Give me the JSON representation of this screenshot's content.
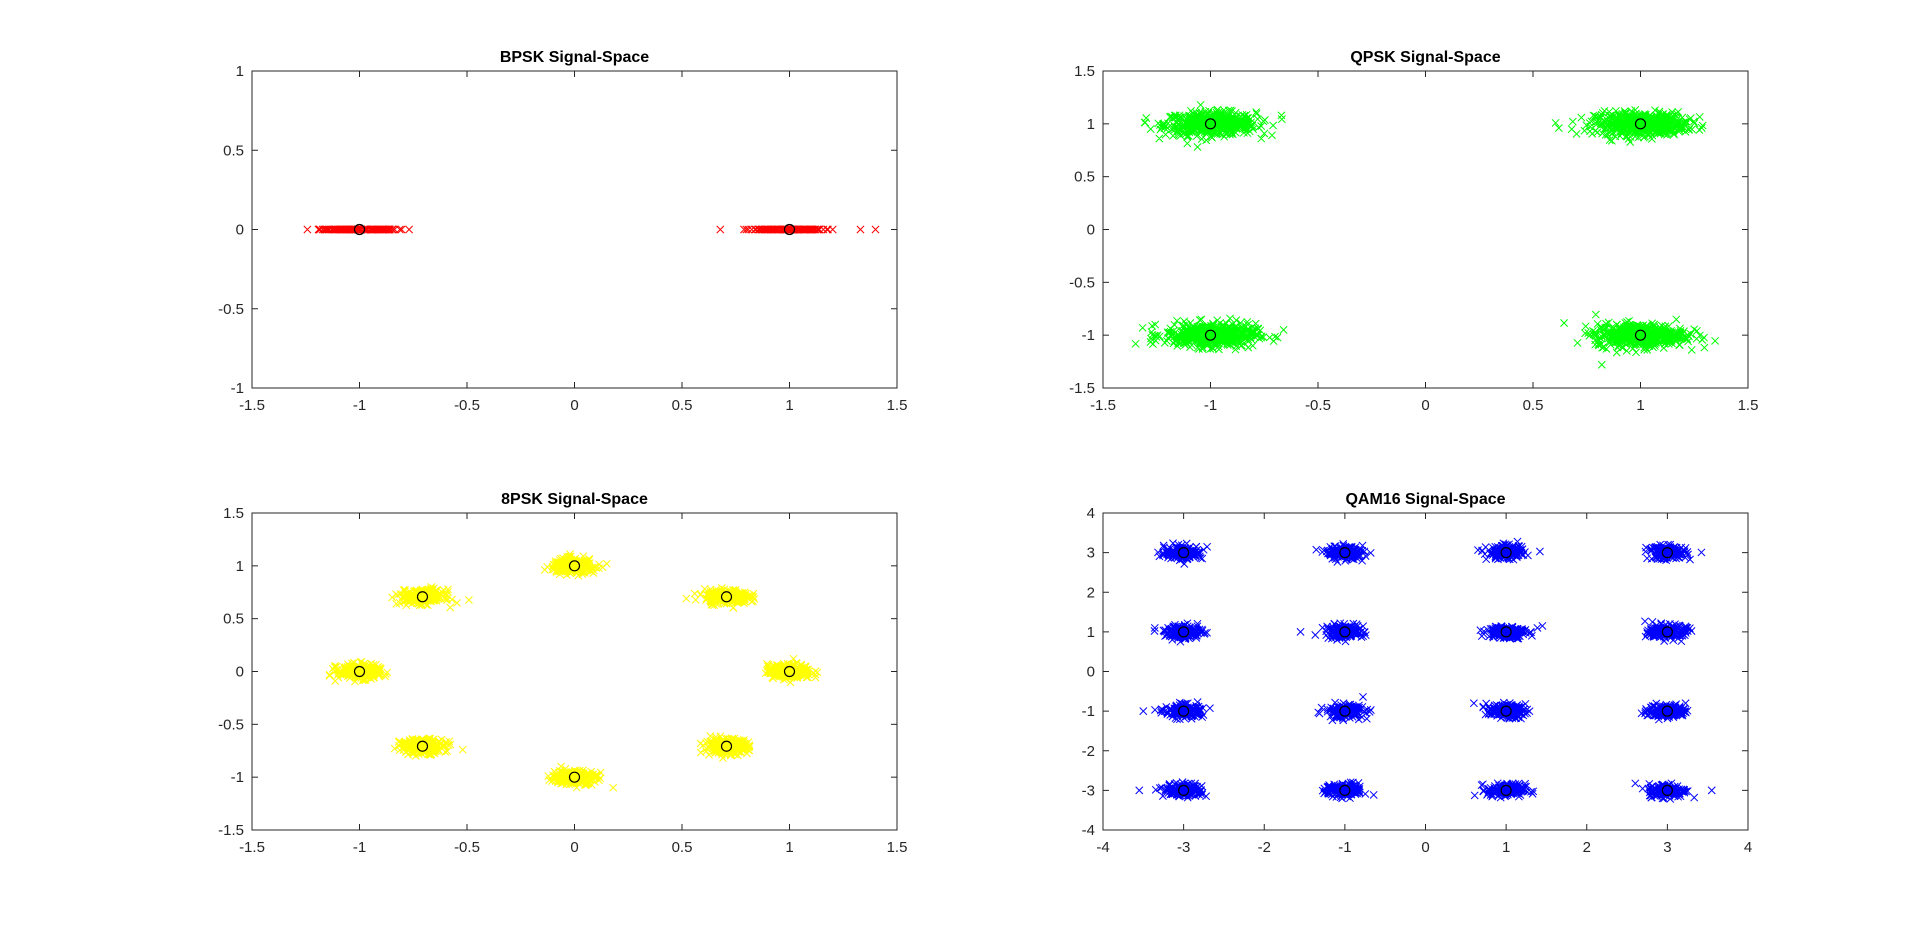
{
  "chart_data": [
    {
      "type": "scatter",
      "title": "BPSK Signal-Space",
      "xlabel": "",
      "ylabel": "",
      "xlim": [
        -1.5,
        1.5
      ],
      "ylim": [
        -1,
        1
      ],
      "xticks": [
        "-1.5",
        "-1",
        "-0.5",
        "0",
        "0.5",
        "1",
        "1.5"
      ],
      "yticks": [
        "-1",
        "-0.5",
        "0",
        "0.5",
        "1"
      ],
      "grid": false,
      "legend": "none",
      "series": [
        {
          "marker": "x",
          "color": "#ff0000",
          "clusters": [
            {
              "x": -1,
              "y": 0,
              "spread_x": 0.22,
              "spread_y": 0.0,
              "count": 180
            },
            {
              "x": 1,
              "y": 0,
              "spread_x": 0.22,
              "spread_y": 0.0,
              "count": 180
            }
          ],
          "extra_points": [
            {
              "x": 1.33,
              "y": 0
            },
            {
              "x": 1.4,
              "y": 0
            }
          ]
        },
        {
          "marker": "o",
          "color": "#000000",
          "x": [
            -1,
            1
          ],
          "y": [
            0,
            0
          ]
        }
      ]
    },
    {
      "type": "scatter",
      "title": "QPSK Signal-Space",
      "xlabel": "",
      "ylabel": "",
      "xlim": [
        -1.5,
        1.5
      ],
      "ylim": [
        -1.5,
        1.5
      ],
      "xticks": [
        "-1.5",
        "-1",
        "-0.5",
        "0",
        "0.5",
        "1",
        "1.5"
      ],
      "yticks": [
        "-1.5",
        "-1",
        "-0.5",
        "0",
        "0.5",
        "1",
        "1.5"
      ],
      "grid": false,
      "legend": "none",
      "series": [
        {
          "marker": "x",
          "color": "#00ff00",
          "clusters": [
            {
              "x": -1,
              "y": 1,
              "spread_x": 0.25,
              "spread_y": 0.13,
              "count": 520
            },
            {
              "x": 1,
              "y": 1,
              "spread_x": 0.25,
              "spread_y": 0.13,
              "count": 520
            },
            {
              "x": -1,
              "y": -1,
              "spread_x": 0.25,
              "spread_y": 0.13,
              "count": 520
            },
            {
              "x": 1,
              "y": -1,
              "spread_x": 0.25,
              "spread_y": 0.13,
              "count": 520
            }
          ],
          "extra_points": [
            {
              "x": 0.62,
              "y": 0.96
            },
            {
              "x": 0.68,
              "y": 0.95
            },
            {
              "x": -0.67,
              "y": 1.08
            },
            {
              "x": -0.66,
              "y": -0.95
            },
            {
              "x": 0.82,
              "y": -1.28
            }
          ]
        },
        {
          "marker": "o",
          "color": "#000000",
          "x": [
            -1,
            1,
            -1,
            1
          ],
          "y": [
            1,
            1,
            -1,
            -1
          ]
        }
      ]
    },
    {
      "type": "scatter",
      "title": "8PSK Signal-Space",
      "xlabel": "",
      "ylabel": "",
      "xlim": [
        -1.5,
        1.5
      ],
      "ylim": [
        -1.5,
        1.5
      ],
      "xticks": [
        "-1.5",
        "-1",
        "-0.5",
        "0",
        "0.5",
        "1",
        "1.5"
      ],
      "yticks": [
        "-1.5",
        "-1",
        "-0.5",
        "0",
        "0.5",
        "1",
        "1.5"
      ],
      "grid": false,
      "legend": "none",
      "series": [
        {
          "marker": "x",
          "color": "#ffff00",
          "clusters": [
            {
              "x": 1,
              "y": 0,
              "spread_x": 0.12,
              "spread_y": 0.08,
              "count": 260
            },
            {
              "x": 0.7071,
              "y": 0.7071,
              "spread_x": 0.12,
              "spread_y": 0.08,
              "count": 260
            },
            {
              "x": 0,
              "y": 1,
              "spread_x": 0.12,
              "spread_y": 0.08,
              "count": 260
            },
            {
              "x": -0.7071,
              "y": 0.7071,
              "spread_x": 0.12,
              "spread_y": 0.08,
              "count": 260
            },
            {
              "x": -1,
              "y": 0,
              "spread_x": 0.12,
              "spread_y": 0.08,
              "count": 260
            },
            {
              "x": -0.7071,
              "y": -0.7071,
              "spread_x": 0.12,
              "spread_y": 0.08,
              "count": 260
            },
            {
              "x": 0,
              "y": -1,
              "spread_x": 0.12,
              "spread_y": 0.08,
              "count": 260
            },
            {
              "x": 0.7071,
              "y": -0.7071,
              "spread_x": 0.12,
              "spread_y": 0.08,
              "count": 260
            }
          ],
          "extra_points": [
            {
              "x": 0.18,
              "y": -1.1
            },
            {
              "x": 0.52,
              "y": 0.69
            },
            {
              "x": -0.52,
              "y": -0.74
            }
          ]
        },
        {
          "marker": "o",
          "color": "#000000",
          "x": [
            1,
            0.7071,
            0,
            -0.7071,
            -1,
            -0.7071,
            0,
            0.7071
          ],
          "y": [
            0,
            0.7071,
            1,
            0.7071,
            0,
            -0.7071,
            -1,
            -0.7071
          ]
        }
      ]
    },
    {
      "type": "scatter",
      "title": "QAM16 Signal-Space",
      "xlabel": "",
      "ylabel": "",
      "xlim": [
        -4,
        4
      ],
      "ylim": [
        -4,
        4
      ],
      "xticks": [
        "-4",
        "-3",
        "-2",
        "-1",
        "0",
        "1",
        "2",
        "3",
        "4"
      ],
      "yticks": [
        "-4",
        "-3",
        "-2",
        "-1",
        "0",
        "1",
        "2",
        "3",
        "4"
      ],
      "grid": false,
      "legend": "none",
      "series": [
        {
          "marker": "x",
          "color": "#0000ff",
          "clusters": [
            {
              "x": -3,
              "y": 3,
              "spread_x": 0.28,
              "spread_y": 0.2,
              "count": 170
            },
            {
              "x": -1,
              "y": 3,
              "spread_x": 0.28,
              "spread_y": 0.2,
              "count": 170
            },
            {
              "x": 1,
              "y": 3,
              "spread_x": 0.28,
              "spread_y": 0.2,
              "count": 170
            },
            {
              "x": 3,
              "y": 3,
              "spread_x": 0.28,
              "spread_y": 0.2,
              "count": 170
            },
            {
              "x": -3,
              "y": 1,
              "spread_x": 0.28,
              "spread_y": 0.2,
              "count": 170
            },
            {
              "x": -1,
              "y": 1,
              "spread_x": 0.28,
              "spread_y": 0.2,
              "count": 170
            },
            {
              "x": 1,
              "y": 1,
              "spread_x": 0.28,
              "spread_y": 0.2,
              "count": 170
            },
            {
              "x": 3,
              "y": 1,
              "spread_x": 0.28,
              "spread_y": 0.2,
              "count": 170
            },
            {
              "x": -3,
              "y": -1,
              "spread_x": 0.28,
              "spread_y": 0.2,
              "count": 170
            },
            {
              "x": -1,
              "y": -1,
              "spread_x": 0.28,
              "spread_y": 0.2,
              "count": 170
            },
            {
              "x": 1,
              "y": -1,
              "spread_x": 0.28,
              "spread_y": 0.2,
              "count": 170
            },
            {
              "x": 3,
              "y": -1,
              "spread_x": 0.28,
              "spread_y": 0.2,
              "count": 170
            },
            {
              "x": -3,
              "y": -3,
              "spread_x": 0.28,
              "spread_y": 0.2,
              "count": 170
            },
            {
              "x": -1,
              "y": -3,
              "spread_x": 0.28,
              "spread_y": 0.2,
              "count": 170
            },
            {
              "x": 1,
              "y": -3,
              "spread_x": 0.28,
              "spread_y": 0.2,
              "count": 170
            },
            {
              "x": 3,
              "y": -3,
              "spread_x": 0.28,
              "spread_y": 0.2,
              "count": 170
            }
          ],
          "extra_points": [
            {
              "x": -3.5,
              "y": -1.0
            },
            {
              "x": -3.55,
              "y": -3.0
            },
            {
              "x": 1.45,
              "y": 1.15
            },
            {
              "x": -1.55,
              "y": 1.0
            },
            {
              "x": 3.55,
              "y": -3.0
            },
            {
              "x": 0.6,
              "y": -0.8
            }
          ]
        },
        {
          "marker": "o",
          "color": "#000000",
          "x": [
            -3,
            -1,
            1,
            3,
            -3,
            -1,
            1,
            3,
            -3,
            -1,
            1,
            3,
            -3,
            -1,
            1,
            3
          ],
          "y": [
            3,
            3,
            3,
            3,
            1,
            1,
            1,
            1,
            -1,
            -1,
            -1,
            -1,
            -3,
            -3,
            -3,
            -3
          ]
        }
      ]
    }
  ]
}
